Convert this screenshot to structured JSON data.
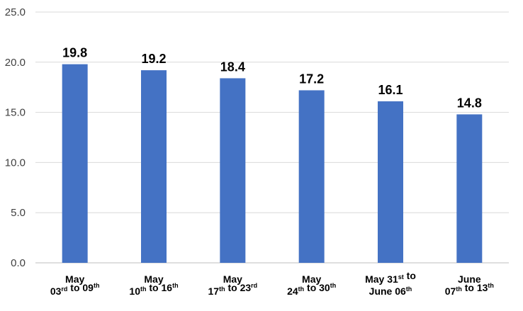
{
  "chart_data": {
    "type": "bar",
    "categories": [
      {
        "lines": [
          [
            {
              "t": "May"
            }
          ],
          [
            {
              "t": "03"
            },
            {
              "t": "rd",
              "sup": true
            },
            {
              "t": " to 09"
            },
            {
              "t": "th",
              "sup": true
            }
          ]
        ]
      },
      {
        "lines": [
          [
            {
              "t": "May"
            }
          ],
          [
            {
              "t": "10"
            },
            {
              "t": "th",
              "sup": true
            },
            {
              "t": " to 16"
            },
            {
              "t": "th",
              "sup": true
            }
          ]
        ]
      },
      {
        "lines": [
          [
            {
              "t": "May"
            }
          ],
          [
            {
              "t": "17"
            },
            {
              "t": "th",
              "sup": true
            },
            {
              "t": " to 23"
            },
            {
              "t": "rd",
              "sup": true
            }
          ]
        ]
      },
      {
        "lines": [
          [
            {
              "t": "May"
            }
          ],
          [
            {
              "t": "24"
            },
            {
              "t": "th",
              "sup": true
            },
            {
              "t": " to 30"
            },
            {
              "t": "th",
              "sup": true
            }
          ]
        ]
      },
      {
        "lines": [
          [
            {
              "t": "May 31"
            },
            {
              "t": "st",
              "sup": true
            },
            {
              "t": " to"
            }
          ],
          [
            {
              "t": "June 06"
            },
            {
              "t": "th",
              "sup": true
            }
          ]
        ]
      },
      {
        "lines": [
          [
            {
              "t": "June"
            }
          ],
          [
            {
              "t": "07"
            },
            {
              "t": "th",
              "sup": true
            },
            {
              "t": " to 13"
            },
            {
              "t": "th",
              "sup": true
            }
          ]
        ]
      }
    ],
    "values": [
      19.8,
      19.2,
      18.4,
      17.2,
      16.1,
      14.8
    ],
    "value_labels": [
      "19.8",
      "19.2",
      "18.4",
      "17.2",
      "16.1",
      "14.8"
    ],
    "y_ticks": [
      "0.0",
      "5.0",
      "10.0",
      "15.0",
      "20.0",
      "25.0"
    ],
    "ylim": [
      0,
      25
    ],
    "grid": true,
    "legend": "none",
    "colors": {
      "bar": "#4472C4",
      "grid": "#D9D9D9",
      "axis": "#BFBFBF"
    }
  }
}
